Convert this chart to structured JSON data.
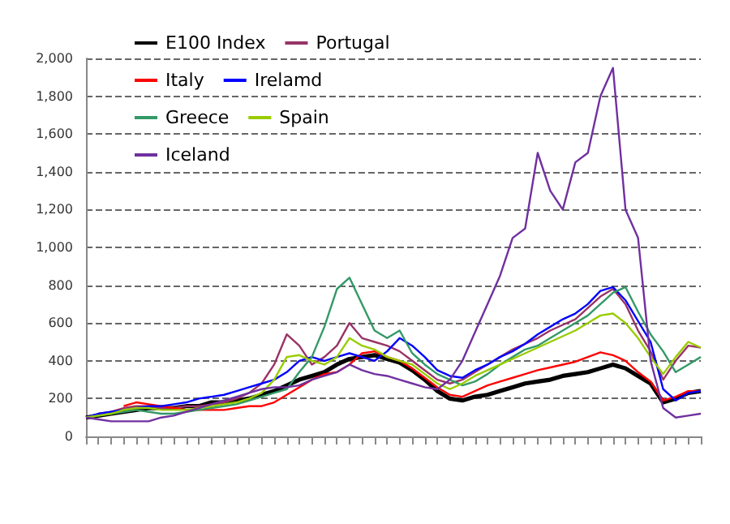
{
  "chart_data": {
    "type": "line",
    "categories": [
      null,
      null,
      null,
      null,
      null,
      null,
      null,
      null,
      null,
      null,
      null,
      null,
      null,
      null,
      null,
      null,
      null,
      null,
      null,
      null,
      null,
      null,
      null,
      null,
      null,
      null,
      null,
      null,
      null,
      null,
      null,
      null,
      null,
      null,
      null,
      null,
      null,
      null,
      null,
      null,
      null,
      null,
      null,
      null,
      null,
      null,
      null,
      null,
      null,
      null
    ],
    "series": [
      {
        "name": "E100 Index",
        "color": "#000000",
        "values": [
          100,
          110,
          120,
          130,
          140,
          150,
          150,
          150,
          160,
          160,
          180,
          180,
          190,
          200,
          220,
          240,
          270,
          300,
          320,
          340,
          380,
          410,
          420,
          430,
          410,
          390,
          350,
          300,
          240,
          200,
          190,
          210,
          220,
          240,
          260,
          280,
          290,
          300,
          320,
          330,
          340,
          360,
          380,
          360,
          320,
          280,
          180,
          200,
          230,
          240
        ]
      },
      {
        "name": "Portugal",
        "color": "#993366",
        "values": [
          100,
          120,
          130,
          150,
          160,
          160,
          150,
          150,
          160,
          160,
          170,
          180,
          200,
          230,
          280,
          380,
          540,
          480,
          380,
          420,
          480,
          600,
          520,
          500,
          480,
          450,
          400,
          350,
          300,
          280,
          300,
          340,
          380,
          420,
          460,
          490,
          520,
          560,
          590,
          620,
          680,
          740,
          780,
          700,
          560,
          450,
          300,
          400,
          480,
          470
        ]
      },
      {
        "name": "Italy",
        "color": "#ff0000",
        "values": [
          null,
          null,
          null,
          160,
          180,
          170,
          160,
          150,
          140,
          140,
          140,
          140,
          150,
          160,
          160,
          180,
          220,
          260,
          300,
          330,
          340,
          380,
          440,
          450,
          420,
          400,
          360,
          310,
          260,
          220,
          210,
          240,
          270,
          290,
          310,
          330,
          350,
          365,
          380,
          395,
          420,
          445,
          430,
          400,
          340,
          290,
          190,
          210,
          240,
          240
        ]
      },
      {
        "name": "Irelamd",
        "color": "#0000ff",
        "values": [
          100,
          120,
          130,
          140,
          150,
          160,
          160,
          170,
          180,
          200,
          210,
          220,
          240,
          260,
          280,
          300,
          340,
          400,
          420,
          400,
          420,
          440,
          420,
          400,
          450,
          520,
          480,
          420,
          350,
          320,
          310,
          350,
          380,
          420,
          450,
          490,
          540,
          580,
          620,
          650,
          700,
          770,
          790,
          720,
          610,
          500,
          250,
          190,
          230,
          240
        ]
      },
      {
        "name": "Greece",
        "color": "#339966",
        "values": [
          100,
          110,
          120,
          130,
          140,
          130,
          120,
          120,
          130,
          140,
          150,
          160,
          170,
          190,
          210,
          230,
          250,
          340,
          420,
          580,
          780,
          840,
          700,
          560,
          520,
          560,
          440,
          380,
          330,
          300,
          270,
          290,
          330,
          380,
          420,
          460,
          480,
          520,
          560,
          600,
          640,
          700,
          760,
          790,
          660,
          540,
          450,
          340,
          380,
          420
        ]
      },
      {
        "name": "Spain",
        "color": "#99cc00",
        "values": [
          100,
          110,
          120,
          140,
          150,
          150,
          140,
          140,
          140,
          150,
          160,
          170,
          180,
          200,
          230,
          300,
          420,
          430,
          400,
          380,
          420,
          520,
          480,
          460,
          420,
          400,
          380,
          330,
          280,
          250,
          280,
          320,
          350,
          380,
          410,
          440,
          470,
          500,
          530,
          560,
          600,
          640,
          650,
          600,
          520,
          420,
          330,
          420,
          500,
          470
        ]
      },
      {
        "name": "Iceland",
        "color": "#7030a0",
        "values": [
          100,
          90,
          80,
          80,
          80,
          80,
          100,
          110,
          130,
          150,
          170,
          190,
          210,
          230,
          250,
          260,
          260,
          270,
          300,
          320,
          340,
          380,
          350,
          330,
          320,
          300,
          280,
          260,
          250,
          300,
          400,
          550,
          700,
          850,
          1050,
          1100,
          1500,
          1300,
          1200,
          1450,
          1500,
          1800,
          1950,
          1200,
          1050,
          400,
          150,
          100,
          110,
          120
        ]
      }
    ],
    "ylim": [
      0,
      2000
    ],
    "yticks": [
      0,
      200,
      400,
      600,
      800,
      {
        "value": 1000,
        "label": "1,000"
      },
      {
        "value": 1200,
        "label": "1,200"
      },
      {
        "value": 1400,
        "label": "1,400"
      },
      {
        "value": 1600,
        "label": "1,600"
      },
      {
        "value": 1800,
        "label": "1,800"
      },
      {
        "value": 2000,
        "label": "2,000"
      }
    ],
    "grid": "y",
    "legend": "top left",
    "tick_labels": "y",
    "marker": "none",
    "line_style": "solid"
  }
}
